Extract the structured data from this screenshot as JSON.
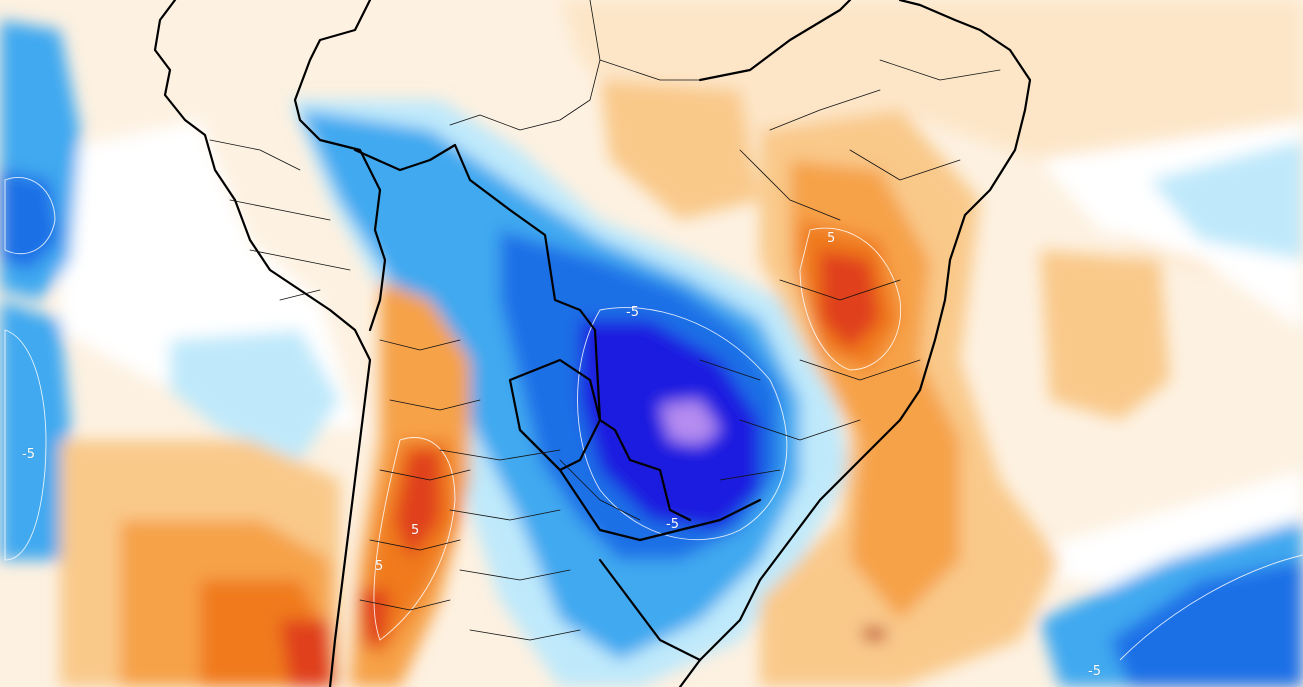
{
  "map": {
    "contour_labels": [
      {
        "id": "north-brazil",
        "text": "5"
      },
      {
        "id": "central-south-america",
        "text": "-5"
      },
      {
        "id": "west-pacific",
        "text": "-5"
      },
      {
        "id": "andes-north",
        "text": "5"
      },
      {
        "id": "andes-south",
        "text": "5"
      },
      {
        "id": "south-brazil",
        "text": "-5"
      },
      {
        "id": "south-atlantic",
        "text": "-5"
      }
    ],
    "palette": {
      "deep_purple": "#b58cf0",
      "deep_blue": "#1a1ae0",
      "blue": "#1f6fe6",
      "light_blue": "#3fa9f0",
      "pale_blue": "#bfe9fb",
      "white": "#ffffff",
      "pale_orange": "#fde6c8",
      "light_orange": "#f9c98a",
      "orange": "#f6a24a",
      "dark_orange": "#f07a1a",
      "red": "#e0401a",
      "dark_red": "#b81a0c"
    },
    "features": {
      "coastline": "black",
      "country_borders": "black",
      "state_borders": "black"
    }
  }
}
